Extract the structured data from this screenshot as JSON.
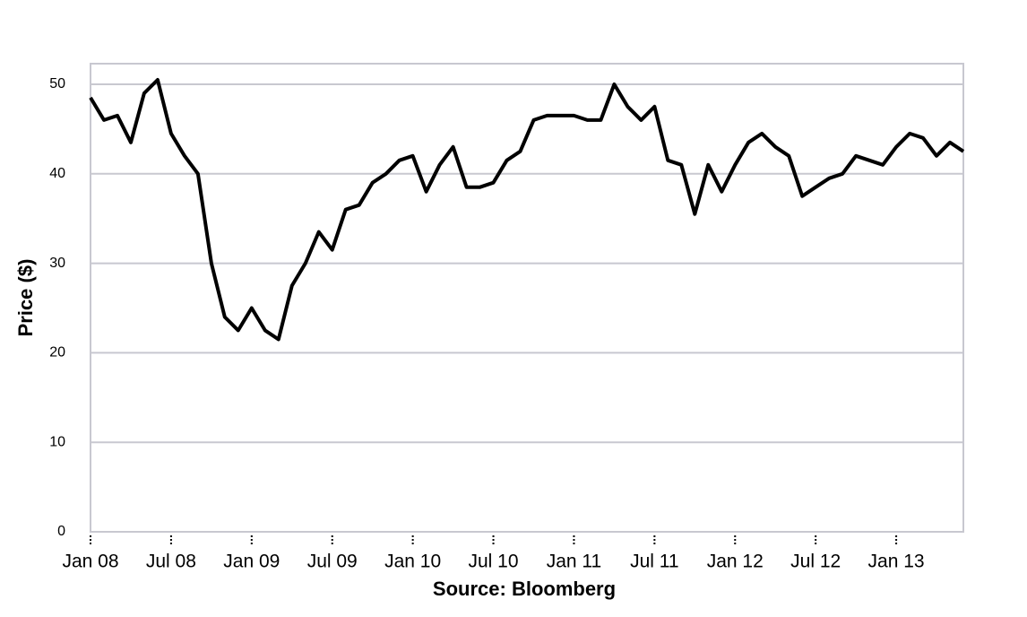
{
  "chart_data": {
    "type": "line",
    "x_label": "Source: Bloomberg",
    "y_label": "Price ($)",
    "x": [
      "2008-01",
      "2008-02",
      "2008-03",
      "2008-04",
      "2008-05",
      "2008-06",
      "2008-07",
      "2008-08",
      "2008-09",
      "2008-10",
      "2008-11",
      "2008-12",
      "2009-01",
      "2009-02",
      "2009-03",
      "2009-04",
      "2009-05",
      "2009-06",
      "2009-07",
      "2009-08",
      "2009-09",
      "2009-10",
      "2009-11",
      "2009-12",
      "2010-01",
      "2010-02",
      "2010-03",
      "2010-04",
      "2010-05",
      "2010-06",
      "2010-07",
      "2010-08",
      "2010-09",
      "2010-10",
      "2010-11",
      "2010-12",
      "2011-01",
      "2011-02",
      "2011-03",
      "2011-04",
      "2011-05",
      "2011-06",
      "2011-07",
      "2011-08",
      "2011-09",
      "2011-10",
      "2011-11",
      "2011-12",
      "2012-01",
      "2012-02",
      "2012-03",
      "2012-04",
      "2012-05",
      "2012-06",
      "2012-07",
      "2012-08",
      "2012-09",
      "2012-10",
      "2012-11",
      "2012-12",
      "2013-01",
      "2013-02",
      "2013-03",
      "2013-04",
      "2013-05",
      "2013-06"
    ],
    "series": [
      {
        "color": "#000000",
        "values": [
          48.5,
          46,
          46.5,
          43.5,
          49,
          50.5,
          44.5,
          42,
          40,
          30,
          24,
          22.5,
          25,
          22.5,
          21.5,
          27.5,
          30,
          33.5,
          31.5,
          36,
          36.5,
          39,
          40,
          41.5,
          42,
          38,
          41,
          43,
          38.5,
          38.5,
          39,
          41.5,
          42.5,
          46,
          46.5,
          46.5,
          46.5,
          46,
          46,
          50,
          47.5,
          46,
          47.5,
          41.5,
          41,
          35.5,
          41,
          38,
          41,
          43.5,
          44.5,
          43,
          42,
          37.5,
          38.5,
          39.5,
          40,
          42,
          41.5,
          41,
          43,
          44.5,
          44,
          42,
          43.5,
          42.5
        ]
      }
    ],
    "xlim": [
      "2008-01",
      "2013-06"
    ],
    "xticks": [
      {
        "value": "2008-01",
        "label": "Jan 08"
      },
      {
        "value": "2008-07",
        "label": "Jul 08"
      },
      {
        "value": "2009-01",
        "label": "Jan 09"
      },
      {
        "value": "2009-07",
        "label": "Jul 09"
      },
      {
        "value": "2010-01",
        "label": "Jan 10"
      },
      {
        "value": "2010-07",
        "label": "Jul 10"
      },
      {
        "value": "2011-01",
        "label": "Jan 11"
      },
      {
        "value": "2011-07",
        "label": "Jul 11"
      },
      {
        "value": "2012-01",
        "label": "Jan 12"
      },
      {
        "value": "2012-07",
        "label": "Jul 12"
      },
      {
        "value": "2013-01",
        "label": "Jan 13"
      }
    ],
    "ylim": [
      0,
      52.3
    ],
    "yticks": [
      0,
      10,
      20,
      30,
      40,
      50
    ],
    "grid": true
  }
}
